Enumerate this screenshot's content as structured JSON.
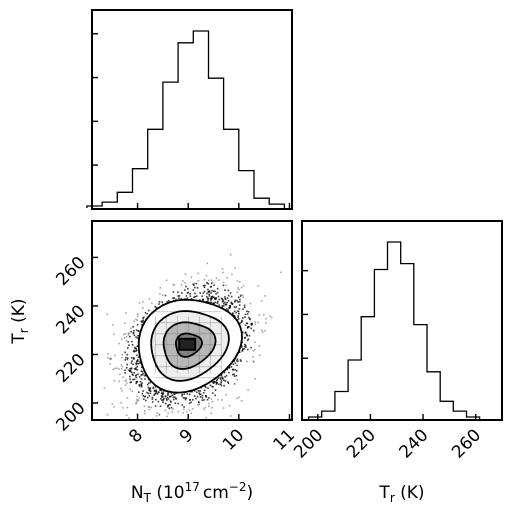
{
  "chart_data": [
    {
      "type": "histogram",
      "panel": "top-left",
      "variable": "N_T",
      "x": [
        7.15,
        7.45,
        7.75,
        8.05,
        8.35,
        8.65,
        8.95,
        9.25,
        9.55,
        9.85,
        10.15,
        10.45,
        10.75
      ],
      "values": [
        1,
        3,
        8,
        20,
        40,
        64,
        84,
        90,
        66,
        40,
        19,
        5,
        2
      ],
      "xlim": [
        7.1,
        11.05
      ]
    },
    {
      "type": "histogram",
      "panel": "bottom-right",
      "variable": "T_r",
      "x": [
        199,
        204,
        209,
        214,
        219,
        224,
        229,
        234,
        239,
        244,
        249,
        254,
        259
      ],
      "values": [
        1,
        4,
        14,
        30,
        52,
        76,
        90,
        79,
        48,
        24,
        9,
        4,
        1
      ],
      "xlim": [
        194,
        270
      ],
      "xticks": [
        "200",
        "220",
        "240",
        "260"
      ],
      "xlabel": "T_r (K)"
    },
    {
      "type": "scatter",
      "panel": "bottom-left",
      "description_of_marks": "2D posterior density with ~20000 samples and filled contour levels",
      "center": {
        "x": 9.0,
        "y": 224
      },
      "spread": {
        "x": 0.5,
        "y": 10
      },
      "contour_levels": [
        "0.5 sigma",
        "1 sigma",
        "1.5 sigma",
        "2 sigma"
      ],
      "xlim": [
        7.1,
        11.05
      ],
      "ylim": [
        193,
        275
      ],
      "xticks": [
        "8",
        "9",
        "10",
        "11"
      ],
      "yticks": [
        "200",
        "220",
        "240",
        "260"
      ],
      "xlabel": "N_T (10^17 cm^-2)",
      "ylabel": "T_r (K)"
    }
  ],
  "labels": {
    "xlabel_left_main": "N",
    "xlabel_left_sub": "T",
    "xlabel_left_rest": " (10",
    "xlabel_left_exp": "17",
    "xlabel_left_unit": "cm",
    "xlabel_left_unit_exp": "−2",
    "xlabel_left_close": ")",
    "xlabel_right_main": "T",
    "xlabel_right_sub": "r",
    "xlabel_right_rest": " (K)",
    "ylabel_main": "T",
    "ylabel_sub": "r",
    "ylabel_rest": " (K)"
  }
}
